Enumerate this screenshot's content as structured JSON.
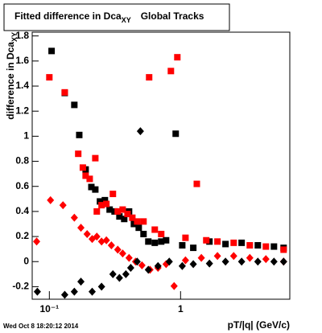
{
  "chart_data": {
    "type": "scatter",
    "title": [
      "Fitted difference in Dca",
      "XY",
      "Global Tracks"
    ],
    "y_label": [
      "difference in Dca",
      "XY"
    ],
    "x_label": "pT/|q| (GeV/c)",
    "footer": "Wed Oct  8 18:20:12 2014",
    "log_x": true,
    "xlim": [
      0.074,
      6.8
    ],
    "ylim": [
      -0.3,
      1.83
    ],
    "xticks": [
      {
        "value": 0.1,
        "label": "10⁻¹"
      },
      1
    ],
    "yticks": [
      -0.2,
      0,
      0.2,
      0.4,
      0.6,
      0.8,
      1,
      1.2,
      1.4,
      1.6,
      1.8
    ],
    "series": [
      {
        "color": "#000000",
        "marker": "square",
        "x": [
          0.104,
          0.131,
          0.155,
          0.169,
          0.189,
          0.209,
          0.224,
          0.243,
          0.265,
          0.288,
          0.314,
          0.342,
          0.372,
          0.405,
          0.441,
          0.48,
          0.522,
          0.568,
          0.636,
          0.712,
          0.776,
          0.918,
          1.03,
          1.25,
          1.66,
          2.2,
          2.92,
          3.88,
          5.15,
          6.1
        ],
        "values": [
          1.68,
          1.345,
          1.25,
          1.01,
          0.735,
          0.595,
          0.575,
          0.48,
          0.49,
          0.415,
          0.4,
          0.36,
          0.34,
          0.4,
          0.3,
          0.27,
          0.22,
          0.16,
          0.15,
          0.16,
          0.17,
          1.02,
          0.13,
          0.11,
          0.16,
          0.14,
          0.15,
          0.13,
          0.12,
          0.11
        ]
      },
      {
        "color": "#ff0000",
        "marker": "square",
        "x": [
          0.1,
          0.131,
          0.166,
          0.18,
          0.189,
          0.203,
          0.224,
          0.23,
          0.25,
          0.272,
          0.305,
          0.332,
          0.362,
          0.394,
          0.429,
          0.467,
          0.522,
          0.576,
          0.636,
          0.712,
          0.844,
          0.945,
          1.09,
          1.33,
          1.57,
          1.91,
          2.54,
          3.37,
          4.47,
          6.1
        ],
        "values": [
          1.47,
          1.35,
          0.86,
          0.75,
          0.685,
          0.66,
          0.825,
          0.4,
          0.45,
          0.46,
          0.54,
          0.4,
          0.415,
          0.38,
          0.35,
          0.32,
          0.32,
          1.47,
          0.255,
          0.22,
          1.52,
          1.63,
          0.19,
          0.62,
          0.17,
          0.16,
          0.15,
          0.13,
          0.12,
          0.095
        ]
      },
      {
        "color": "#ff0000",
        "marker": "diamond",
        "x": [
          0.08,
          0.102,
          0.127,
          0.155,
          0.174,
          0.194,
          0.212,
          0.23,
          0.25,
          0.272,
          0.297,
          0.332,
          0.362,
          0.405,
          0.454,
          0.508,
          0.585,
          0.673,
          0.776,
          0.893,
          1.09,
          1.44,
          1.91,
          2.54,
          3.37,
          4.47,
          6.1
        ],
        "values": [
          0.16,
          0.49,
          0.45,
          0.35,
          0.27,
          0.22,
          0.18,
          0.2,
          0.16,
          0.17,
          0.13,
          0.095,
          0.065,
          0.03,
          0,
          -0.03,
          -0.065,
          -0.05,
          -0.02,
          -0.195,
          0.01,
          0.03,
          0.045,
          0.045,
          0.03,
          0.02,
          0
        ]
      },
      {
        "color": "#000000",
        "marker": "diamond",
        "x": [
          0.081,
          0.131,
          0.155,
          0.174,
          0.212,
          0.25,
          0.305,
          0.342,
          0.383,
          0.417,
          0.467,
          0.494,
          0.568,
          0.673,
          0.82,
          1.03,
          1.25,
          1.66,
          2.2,
          2.92,
          3.88,
          5.15,
          6.1
        ],
        "values": [
          -0.24,
          -0.265,
          -0.24,
          -0.16,
          -0.24,
          -0.2,
          -0.1,
          -0.13,
          -0.1,
          -0.05,
          0,
          1.04,
          -0.065,
          -0.035,
          0,
          -0.035,
          -0.02,
          -0.015,
          0,
          0,
          0,
          0,
          0
        ]
      }
    ]
  }
}
